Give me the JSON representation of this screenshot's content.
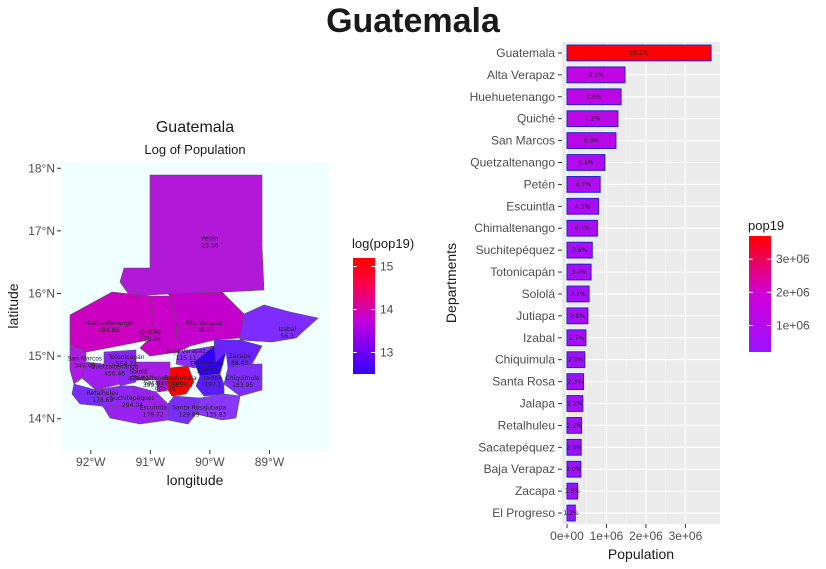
{
  "main_title": "Guatemala",
  "chart_data": [
    {
      "type": "map",
      "title": "Guatemala",
      "subtitle": "Log of Population",
      "xlabel": "longitude",
      "ylabel": "latitude",
      "x_ticks": [
        "92°W",
        "91°W",
        "90°W",
        "89°W"
      ],
      "y_ticks": [
        "14°N",
        "15°N",
        "16°N",
        "17°N",
        "18°N"
      ],
      "xlim": [
        -92.5,
        -88.0
      ],
      "ylim": [
        13.5,
        18.1
      ],
      "legend": {
        "title": "log(pop19)",
        "ticks": [
          "13",
          "14",
          "15"
        ],
        "range": [
          12.5,
          15.2
        ],
        "colors": [
          "#3300ff",
          "#c000e0",
          "#ff0040",
          "#ff0000"
        ],
        "position": "right"
      },
      "region_labels": [
        {
          "name": "Petén",
          "value": "23.36",
          "lon": -90.0,
          "lat": 16.85
        },
        {
          "name": "Huehuetenango",
          "value": "184.83",
          "lon": -91.7,
          "lat": 15.5
        },
        {
          "name": "Quiché",
          "value": "175.04",
          "lon": -91.0,
          "lat": 15.35
        },
        {
          "name": "Alta Verapaz",
          "value": "136.86",
          "lon": -90.1,
          "lat": 15.5
        },
        {
          "name": "Izabal",
          "value": "56.3",
          "lon": -88.7,
          "lat": 15.4
        },
        {
          "name": "Baja Verapaz",
          "value": "115.11",
          "lon": -90.4,
          "lat": 15.05
        },
        {
          "name": "Zacapa",
          "value": "88.43",
          "lon": -89.5,
          "lat": 14.97
        },
        {
          "name": "El Progreso",
          "value": "104.77",
          "lon": -90.05,
          "lat": 14.85
        },
        {
          "name": "Totonicapán",
          "value": "554.72",
          "lon": -91.4,
          "lat": 14.95
        },
        {
          "name": "San Marcos",
          "value": "340.49",
          "lon": -92.1,
          "lat": 14.93
        },
        {
          "name": "Quetzaltenango",
          "value": "450.46",
          "lon": -91.6,
          "lat": 14.8
        },
        {
          "name": "Sololá",
          "value": "470.62",
          "lon": -91.2,
          "lat": 14.72
        },
        {
          "name": "Chimaltenango",
          "value": "399.93",
          "lon": -90.95,
          "lat": 14.62
        },
        {
          "name": "Sacatepéquez",
          "value": "993.76",
          "lon": -90.75,
          "lat": 14.55
        },
        {
          "name": "Guatemala",
          "value": "1585.34",
          "lon": -90.5,
          "lat": 14.62
        },
        {
          "name": "Jalapa",
          "value": "197.1",
          "lon": -89.95,
          "lat": 14.63
        },
        {
          "name": "Chiquimula",
          "value": "183.95",
          "lon": -89.45,
          "lat": 14.62
        },
        {
          "name": "Retalhuleu",
          "value": "178.69",
          "lon": -91.8,
          "lat": 14.38
        },
        {
          "name": "Suchitepéquez",
          "value": "294.04",
          "lon": -91.3,
          "lat": 14.3
        },
        {
          "name": "Escuintla",
          "value": "178.72",
          "lon": -90.95,
          "lat": 14.15
        },
        {
          "name": "Santa Rosa",
          "value": "129.89",
          "lon": -90.35,
          "lat": 14.15
        },
        {
          "name": "Jutiapa",
          "value": "135.83",
          "lon": -89.9,
          "lat": 14.15
        }
      ]
    },
    {
      "type": "bar",
      "orientation": "horizontal",
      "xlabel": "Population",
      "ylabel": "Departments",
      "x_ticks": [
        "0e+00",
        "1e+06",
        "2e+06",
        "3e+06"
      ],
      "x_tick_values": [
        0,
        1000000,
        2000000,
        3000000
      ],
      "xlim": [
        0,
        3800000
      ],
      "grid": true,
      "categories": [
        "Guatemala",
        "Alta Verapaz",
        "Huehuetenango",
        "Quiché",
        "San Marcos",
        "Quetzaltenango",
        "Petén",
        "Escuintla",
        "Chimaltenango",
        "Suchitepéquez",
        "Totonicapán",
        "Sololá",
        "Jutiapa",
        "Izabal",
        "Chiquimula",
        "Santa Rosa",
        "Jalapa",
        "Retalhuleu",
        "Sacatepéquez",
        "Baja Verapaz",
        "Zacapa",
        "El Progreso"
      ],
      "values": [
        3650000,
        1470000,
        1370000,
        1290000,
        1240000,
        960000,
        840000,
        800000,
        770000,
        640000,
        610000,
        560000,
        530000,
        480000,
        450000,
        420000,
        400000,
        370000,
        360000,
        350000,
        270000,
        210000
      ],
      "labels": [
        "20.2%",
        "8.1%",
        "7.6%",
        "7.2%",
        "6.9%",
        "5.4%",
        "4.7%",
        "4.5%",
        "4.3%",
        "3.6%",
        "3.4%",
        "3.1%",
        "2.9%",
        "2.7%",
        "2.5%",
        "2.3%",
        "2.2%",
        "2.1%",
        "2.0%",
        "2.0%",
        "1.5%",
        "1.2%"
      ],
      "legend": {
        "title": "pop19",
        "ticks": [
          "1e+06",
          "2e+06",
          "3e+06"
        ],
        "tick_values": [
          1000000,
          2000000,
          3000000
        ],
        "range": [
          200000,
          3700000
        ],
        "colors": [
          "#9a12ff",
          "#d000d8",
          "#ff0000"
        ],
        "position": "right"
      }
    }
  ]
}
